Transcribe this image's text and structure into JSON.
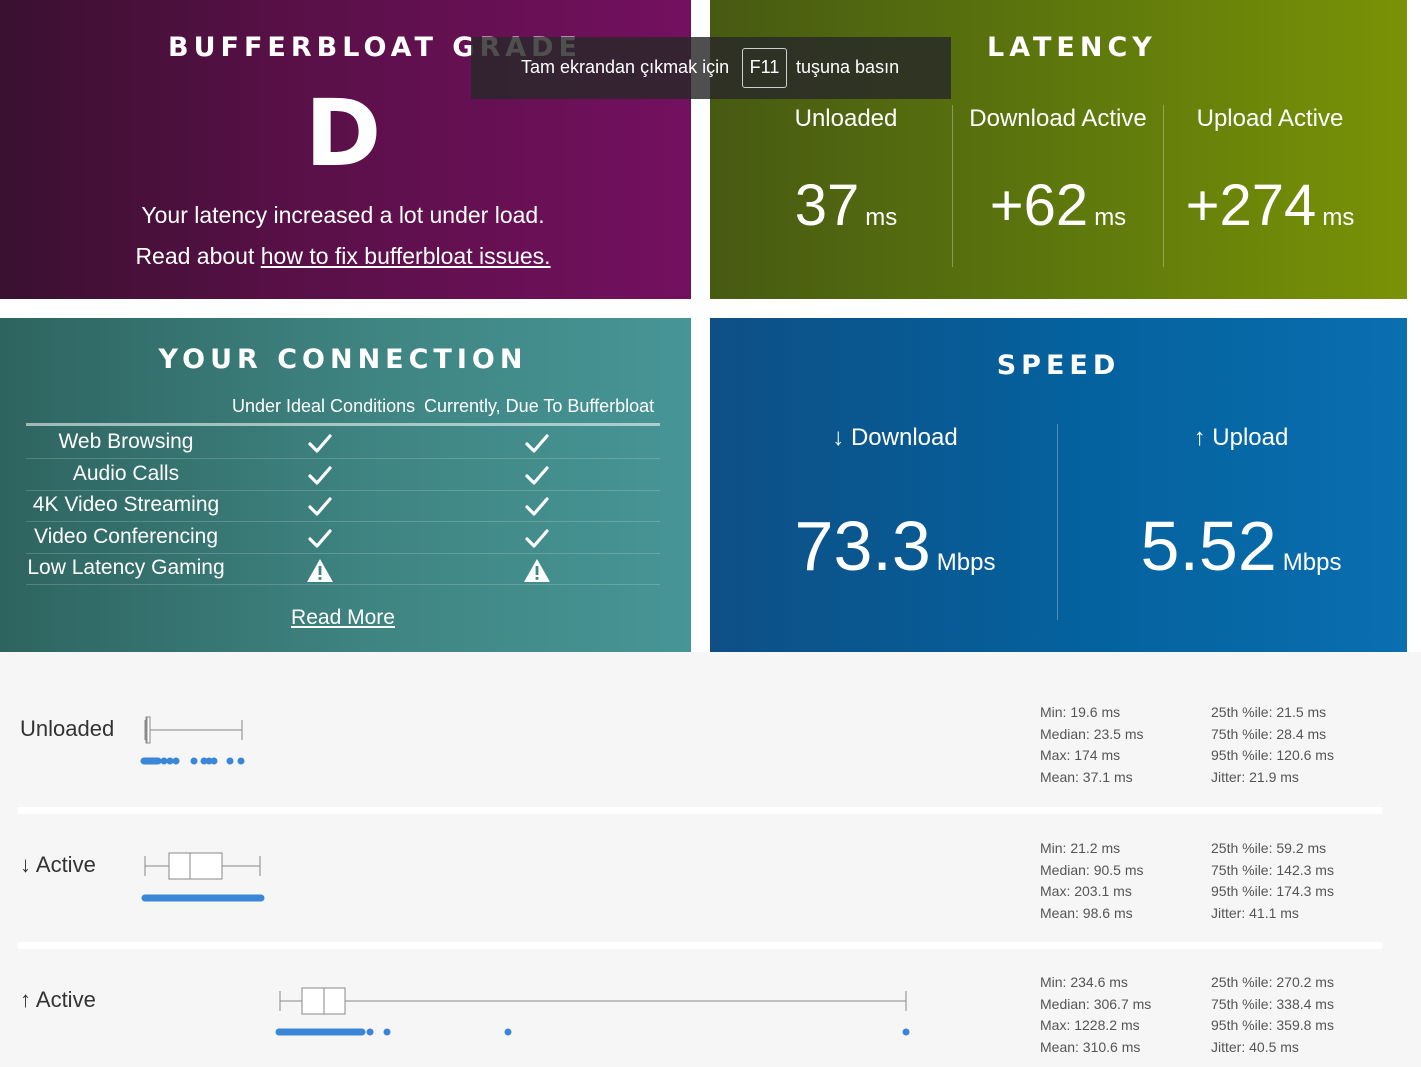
{
  "grade": {
    "title": "BUFFERBLOAT GRADE",
    "letter": "D",
    "description": "Your latency increased a lot under load.",
    "read_prefix": "Read about ",
    "read_link": "how to fix bufferbloat issues."
  },
  "latency": {
    "title": "LATENCY",
    "columns": [
      {
        "label": "Unloaded",
        "value": "37",
        "unit": "ms"
      },
      {
        "label": "Download Active",
        "value": "+62",
        "unit": "ms"
      },
      {
        "label": "Upload Active",
        "value": "+274",
        "unit": "ms"
      }
    ]
  },
  "connection": {
    "title": "YOUR CONNECTION",
    "col_ideal": "Under Ideal Conditions",
    "col_current": "Currently, Due To Bufferbloat",
    "rows": [
      {
        "label": "Web Browsing",
        "ideal": "check-icon",
        "current": "check-icon"
      },
      {
        "label": "Audio Calls",
        "ideal": "check-icon",
        "current": "check-icon"
      },
      {
        "label": "4K Video Streaming",
        "ideal": "check-icon",
        "current": "check-icon"
      },
      {
        "label": "Video Conferencing",
        "ideal": "check-icon",
        "current": "check-icon"
      },
      {
        "label": "Low Latency Gaming",
        "ideal": "warning-icon",
        "current": "warning-icon"
      }
    ],
    "read_more": "Read More"
  },
  "speed": {
    "title": "SPEED",
    "download": {
      "label": "↓ Download",
      "value": "73.3",
      "unit": "Mbps"
    },
    "upload": {
      "label": "↑ Upload",
      "value": "5.52",
      "unit": "Mbps"
    }
  },
  "stats": [
    {
      "label": "Unloaded",
      "stats_left": [
        "Min: 19.6 ms",
        "Median: 23.5 ms",
        "Max: 174 ms",
        "Mean: 37.1 ms"
      ],
      "stats_right": [
        "25th %ile: 21.5 ms",
        "75th %ile: 28.4 ms",
        "95th %ile: 120.6 ms",
        "Jitter: 21.9 ms"
      ]
    },
    {
      "label": "↓ Active",
      "stats_left": [
        "Min: 21.2 ms",
        "Median: 90.5 ms",
        "Max: 203.1 ms",
        "Mean: 98.6 ms"
      ],
      "stats_right": [
        "25th %ile: 59.2 ms",
        "75th %ile: 142.3 ms",
        "95th %ile: 174.3 ms",
        "Jitter: 41.1 ms"
      ]
    },
    {
      "label": "↑ Active",
      "stats_left": [
        "Min: 234.6 ms",
        "Median: 306.7 ms",
        "Max: 1228.2 ms",
        "Mean: 310.6 ms"
      ],
      "stats_right": [
        "25th %ile: 270.2 ms",
        "75th %ile: 338.4 ms",
        "95th %ile: 359.8 ms",
        "Jitter: 40.5 ms"
      ]
    }
  ],
  "fullscreen_toast": {
    "text_before": "Tam ekrandan çıkmak için",
    "key": "F11",
    "text_after": "tuşuna basın"
  },
  "colors": {
    "grade_bg": "#5a1048",
    "latency_bg": "#5f7a0c",
    "connection_bg": "#3f8582",
    "speed_bg": "#04629e",
    "dot_blue": "#3a86d8"
  }
}
